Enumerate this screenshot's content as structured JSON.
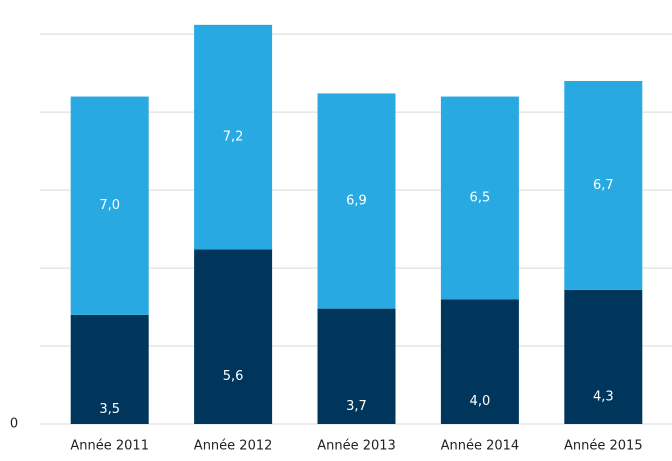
{
  "chart_data": {
    "type": "stacked_bar",
    "categories": [
      "Année 2011",
      "Année 2012",
      "Année 2013",
      "Année 2014",
      "Année 2015"
    ],
    "series": [
      {
        "color": "#00365b",
        "values": [
          3.5,
          5.6,
          3.7,
          4.0,
          4.3
        ],
        "value_labels": [
          "3,5",
          "5,6",
          "3,7",
          "4,0",
          "4,3"
        ]
      },
      {
        "color": "#29a9e1",
        "values": [
          7.0,
          7.2,
          6.9,
          6.5,
          6.7
        ],
        "value_labels": [
          "7,0",
          "7,2",
          "6,9",
          "6,5",
          "6,7"
        ]
      }
    ],
    "ylim": [
      0,
      13.5
    ],
    "yticks": [
      0
    ],
    "ygrid": [
      0,
      2.5,
      5,
      7.5,
      10,
      12.5
    ],
    "grid": true
  }
}
